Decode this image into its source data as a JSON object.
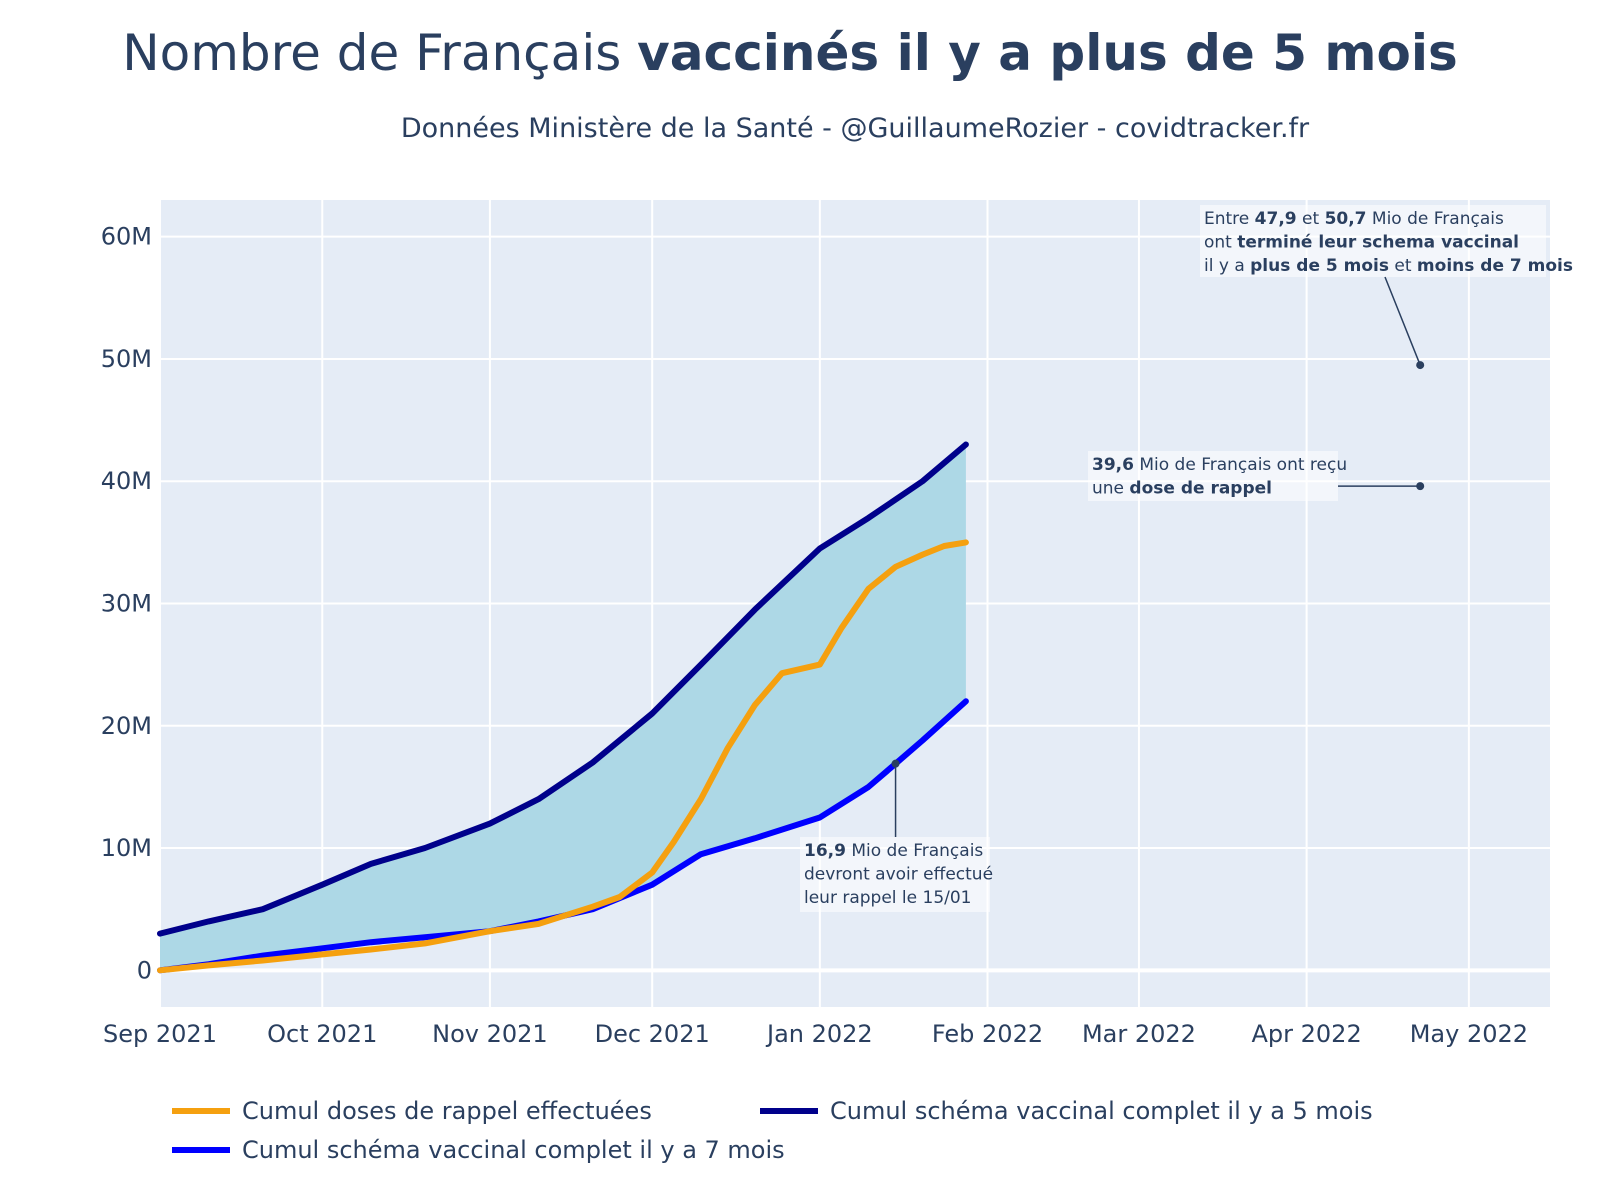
{
  "title": {
    "normal": "Nombre de Français ",
    "bold": "vaccinés il y a plus de 5 mois"
  },
  "subtitle": "Données Ministère de la Santé - @GuillaumeRozier - covidtracker.fr",
  "chart_data": {
    "type": "line",
    "x_range": [
      "2021-09-01",
      "2022-05-16"
    ],
    "y_range": [
      -3000000,
      63000000
    ],
    "x_ticks": [
      {
        "date": "2021-09-01",
        "label": "Sep 2021"
      },
      {
        "date": "2021-10-01",
        "label": "Oct 2021"
      },
      {
        "date": "2021-11-01",
        "label": "Nov 2021"
      },
      {
        "date": "2021-12-01",
        "label": "Dec 2021"
      },
      {
        "date": "2022-01-01",
        "label": "Jan 2022"
      },
      {
        "date": "2022-02-01",
        "label": "Feb 2022"
      },
      {
        "date": "2022-03-01",
        "label": "Mar 2022"
      },
      {
        "date": "2022-04-01",
        "label": "Apr 2022"
      },
      {
        "date": "2022-05-01",
        "label": "May 2022"
      }
    ],
    "y_ticks": [
      {
        "value": 0,
        "label": "0"
      },
      {
        "value": 10000000,
        "label": "10M"
      },
      {
        "value": 20000000,
        "label": "20M"
      },
      {
        "value": 30000000,
        "label": "30M"
      },
      {
        "value": 40000000,
        "label": "40M"
      },
      {
        "value": 50000000,
        "label": "50M"
      },
      {
        "value": 60000000,
        "label": "60M"
      }
    ],
    "grid": true,
    "fill_between": [
      "Cumul schéma vaccinal complet il y a 5 mois",
      "Cumul schéma vaccinal complet il y a 7 mois"
    ],
    "fill_color": "#add8e6",
    "series": [
      {
        "name": "Cumul doses de rappel effectuées",
        "color": "#f5a00f",
        "x": [
          "2021-09-01",
          "2021-09-10",
          "2021-09-20",
          "2021-10-01",
          "2021-10-10",
          "2021-10-20",
          "2021-11-01",
          "2021-11-10",
          "2021-11-20",
          "2021-11-25",
          "2021-12-01",
          "2021-12-05",
          "2021-12-10",
          "2021-12-15",
          "2021-12-20",
          "2021-12-25",
          "2022-01-01",
          "2022-01-05",
          "2022-01-10",
          "2022-01-15",
          "2022-01-20",
          "2022-01-24",
          "2022-01-28"
        ],
        "y": [
          0,
          400000,
          800000,
          1300000,
          1700000,
          2200000,
          3200000,
          3800000,
          5200000,
          6000000,
          8000000,
          10500000,
          14000000,
          18200000,
          21700000,
          24300000,
          25000000,
          28000000,
          31200000,
          33000000,
          34000000,
          34700000,
          35000000
        ]
      },
      {
        "name": "Cumul schéma vaccinal complet il y a 5 mois",
        "color": "#00008b",
        "x": [
          "2021-09-01",
          "2021-09-10",
          "2021-09-20",
          "2021-10-01",
          "2021-10-10",
          "2021-10-20",
          "2021-11-01",
          "2021-11-10",
          "2021-11-20",
          "2021-12-01",
          "2021-12-10",
          "2021-12-20",
          "2022-01-01",
          "2022-01-10",
          "2022-01-20",
          "2022-01-28"
        ],
        "y": [
          3000000,
          4000000,
          5000000,
          7000000,
          8700000,
          10000000,
          12000000,
          14000000,
          17000000,
          21000000,
          25000000,
          29500000,
          34500000,
          37000000,
          40000000,
          43000000
        ]
      },
      {
        "name": "Cumul schéma vaccinal complet il y a 7 mois",
        "color": "#0000ff",
        "x": [
          "2021-09-01",
          "2021-09-10",
          "2021-09-20",
          "2021-10-01",
          "2021-10-10",
          "2021-10-20",
          "2021-11-01",
          "2021-11-10",
          "2021-11-20",
          "2021-12-01",
          "2021-12-10",
          "2021-12-20",
          "2022-01-01",
          "2022-01-10",
          "2022-01-15",
          "2022-01-20",
          "2022-01-28"
        ],
        "y": [
          0,
          500000,
          1200000,
          1800000,
          2300000,
          2700000,
          3200000,
          4000000,
          5000000,
          7000000,
          9500000,
          10800000,
          12500000,
          15000000,
          16900000,
          18800000,
          22000000
        ]
      }
    ],
    "annotations": [
      {
        "lines": [
          [
            {
              "t": "Entre ",
              "b": false
            },
            {
              "t": "47,9",
              "b": true
            },
            {
              "t": " et ",
              "b": false
            },
            {
              "t": "50,7",
              "b": true
            },
            {
              "t": " Mio de Français",
              "b": false
            }
          ],
          [
            {
              "t": "ont ",
              "b": false
            },
            {
              "t": "terminé leur schema vaccinal",
              "b": true
            }
          ],
          [
            {
              "t": "il y a ",
              "b": false
            },
            {
              "t": "plus de 5 mois",
              "b": true
            },
            {
              "t": " et ",
              "b": false
            },
            {
              "t": "moins de 7 mois",
              "b": true
            }
          ]
        ],
        "point": {
          "x": "2022-04-22",
          "y": 49500000
        }
      },
      {
        "lines": [
          [
            {
              "t": "39,6",
              "b": true
            },
            {
              "t": " Mio de Français ont reçu",
              "b": false
            }
          ],
          [
            {
              "t": "une ",
              "b": false
            },
            {
              "t": "dose de rappel",
              "b": true
            }
          ]
        ],
        "point": {
          "x": "2022-04-22",
          "y": 39600000
        }
      },
      {
        "lines": [
          [
            {
              "t": "16,9",
              "b": true
            },
            {
              "t": " Mio de Français",
              "b": false
            }
          ],
          [
            {
              "t": "devront avoir effectué",
              "b": false
            }
          ],
          [
            {
              "t": "leur rappel le 15/01",
              "b": false
            }
          ]
        ],
        "point": {
          "x": "2022-01-15",
          "y": 16900000
        }
      }
    ]
  }
}
